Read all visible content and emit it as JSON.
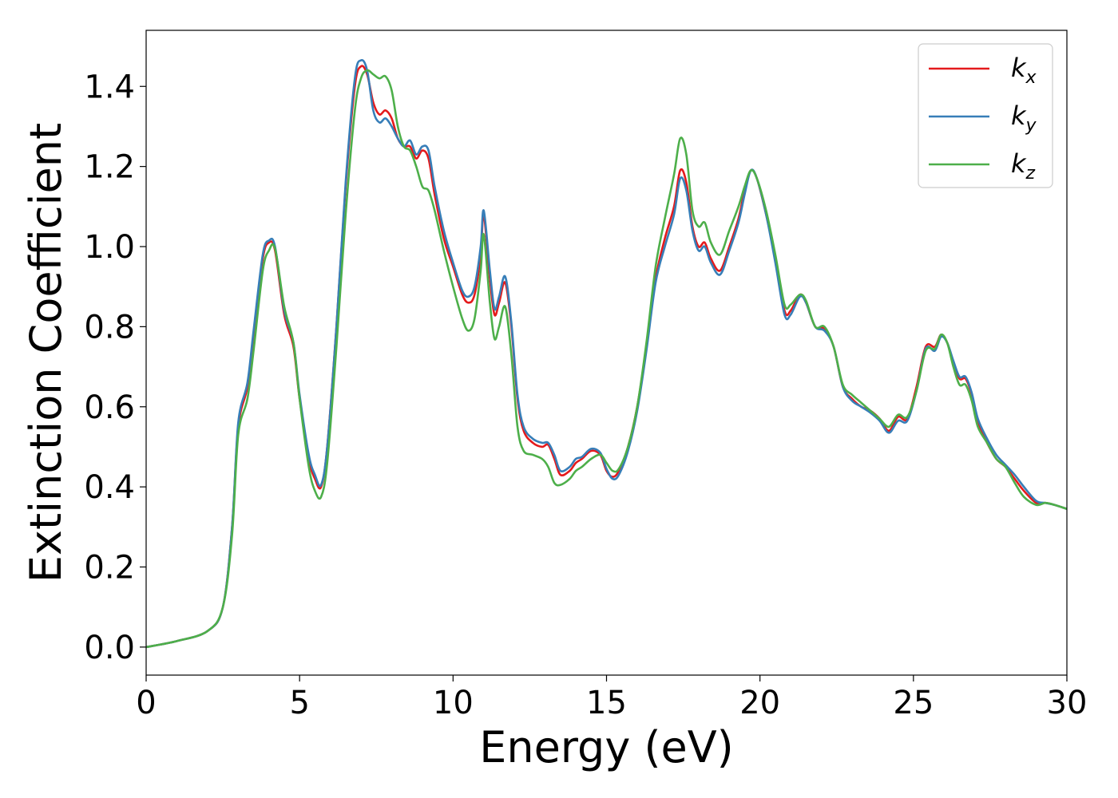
{
  "chart_data": {
    "type": "line",
    "title": "",
    "xlabel": "Energy (eV)",
    "ylabel": "Extinction Coefficient",
    "xlim": [
      0,
      30
    ],
    "ylim": [
      -0.07,
      1.54
    ],
    "xticks": [
      0,
      5,
      10,
      15,
      20,
      25,
      30
    ],
    "xtick_labels": [
      "0",
      "5",
      "10",
      "15",
      "20",
      "25",
      "30"
    ],
    "yticks": [
      0.0,
      0.2,
      0.4,
      0.6,
      0.8,
      1.0,
      1.2,
      1.4
    ],
    "ytick_labels": [
      "0.0",
      "0.2",
      "0.4",
      "0.6",
      "0.8",
      "1.0",
      "1.2",
      "1.4"
    ],
    "grid": false,
    "legend_position": "top-right",
    "series": [
      {
        "name": "k_x",
        "legend_base": "k",
        "legend_sub": "x",
        "color": "#e41a1c",
        "x": [
          0,
          1,
          2,
          2.5,
          2.8,
          3.0,
          3.3,
          3.5,
          3.8,
          4.0,
          4.2,
          4.5,
          4.8,
          5.0,
          5.3,
          5.5,
          5.7,
          5.9,
          6.2,
          6.5,
          6.8,
          7.0,
          7.2,
          7.4,
          7.6,
          7.8,
          8.0,
          8.2,
          8.4,
          8.6,
          8.8,
          9.0,
          9.2,
          9.4,
          9.7,
          10.0,
          10.3,
          10.5,
          10.7,
          10.9,
          11.0,
          11.2,
          11.35,
          11.5,
          11.7,
          11.9,
          12.1,
          12.3,
          12.6,
          12.9,
          13.1,
          13.3,
          13.5,
          13.8,
          14.0,
          14.2,
          14.5,
          14.8,
          15.0,
          15.2,
          15.4,
          15.7,
          16.0,
          16.3,
          16.6,
          16.9,
          17.2,
          17.4,
          17.6,
          17.8,
          18.0,
          18.2,
          18.4,
          18.7,
          19.0,
          19.3,
          19.5,
          19.7,
          19.9,
          20.2,
          20.5,
          20.8,
          21.0,
          21.3,
          21.5,
          21.8,
          22.1,
          22.4,
          22.7,
          23.0,
          23.3,
          23.6,
          23.9,
          24.2,
          24.5,
          24.8,
          25.1,
          25.4,
          25.7,
          25.9,
          26.1,
          26.3,
          26.5,
          26.7,
          26.9,
          27.1,
          27.4,
          27.7,
          28.0,
          28.3,
          28.6,
          29.0,
          29.3,
          29.6,
          30.0
        ],
        "y": [
          0.0,
          0.015,
          0.04,
          0.1,
          0.3,
          0.55,
          0.65,
          0.78,
          0.97,
          1.01,
          0.99,
          0.83,
          0.75,
          0.62,
          0.47,
          0.42,
          0.4,
          0.5,
          0.8,
          1.15,
          1.4,
          1.45,
          1.43,
          1.36,
          1.33,
          1.34,
          1.32,
          1.27,
          1.25,
          1.25,
          1.22,
          1.24,
          1.22,
          1.13,
          1.02,
          0.95,
          0.88,
          0.86,
          0.88,
          0.98,
          1.08,
          0.92,
          0.83,
          0.86,
          0.91,
          0.8,
          0.62,
          0.54,
          0.51,
          0.5,
          0.505,
          0.47,
          0.43,
          0.44,
          0.46,
          0.47,
          0.49,
          0.48,
          0.44,
          0.425,
          0.44,
          0.5,
          0.6,
          0.75,
          0.92,
          1.02,
          1.1,
          1.19,
          1.16,
          1.05,
          1.0,
          1.01,
          0.97,
          0.94,
          1.0,
          1.07,
          1.14,
          1.19,
          1.17,
          1.08,
          0.97,
          0.84,
          0.84,
          0.88,
          0.86,
          0.8,
          0.795,
          0.75,
          0.65,
          0.62,
          0.6,
          0.59,
          0.57,
          0.54,
          0.575,
          0.57,
          0.65,
          0.75,
          0.75,
          0.78,
          0.76,
          0.71,
          0.67,
          0.67,
          0.63,
          0.56,
          0.51,
          0.47,
          0.45,
          0.42,
          0.39,
          0.36,
          0.36,
          0.355,
          0.345
        ]
      },
      {
        "name": "k_y",
        "legend_base": "k",
        "legend_sub": "y",
        "color": "#377eb8",
        "x": [
          0,
          1,
          2,
          2.5,
          2.8,
          3.0,
          3.3,
          3.5,
          3.8,
          4.0,
          4.2,
          4.5,
          4.8,
          5.0,
          5.3,
          5.5,
          5.7,
          5.9,
          6.2,
          6.5,
          6.8,
          7.0,
          7.2,
          7.4,
          7.6,
          7.8,
          8.0,
          8.2,
          8.4,
          8.6,
          8.8,
          9.0,
          9.2,
          9.4,
          9.7,
          10.0,
          10.3,
          10.5,
          10.7,
          10.9,
          11.0,
          11.2,
          11.35,
          11.5,
          11.7,
          11.9,
          12.1,
          12.3,
          12.6,
          12.9,
          13.1,
          13.3,
          13.5,
          13.8,
          14.0,
          14.2,
          14.5,
          14.8,
          15.0,
          15.2,
          15.4,
          15.7,
          16.0,
          16.3,
          16.6,
          16.9,
          17.2,
          17.4,
          17.6,
          17.8,
          18.0,
          18.2,
          18.4,
          18.7,
          19.0,
          19.3,
          19.5,
          19.7,
          19.9,
          20.2,
          20.5,
          20.8,
          21.0,
          21.3,
          21.5,
          21.8,
          22.1,
          22.4,
          22.7,
          23.0,
          23.3,
          23.6,
          23.9,
          24.2,
          24.5,
          24.8,
          25.1,
          25.4,
          25.7,
          25.9,
          26.1,
          26.3,
          26.5,
          26.7,
          26.9,
          27.1,
          27.4,
          27.7,
          28.0,
          28.3,
          28.6,
          29.0,
          29.3,
          29.6,
          30.0
        ],
        "y": [
          0.0,
          0.015,
          0.04,
          0.1,
          0.3,
          0.56,
          0.66,
          0.79,
          0.98,
          1.015,
          1.0,
          0.84,
          0.76,
          0.63,
          0.48,
          0.43,
          0.405,
          0.5,
          0.8,
          1.16,
          1.42,
          1.465,
          1.44,
          1.34,
          1.31,
          1.32,
          1.3,
          1.27,
          1.25,
          1.265,
          1.23,
          1.25,
          1.24,
          1.15,
          1.04,
          0.96,
          0.89,
          0.875,
          0.9,
          1.0,
          1.09,
          0.94,
          0.845,
          0.875,
          0.925,
          0.81,
          0.63,
          0.55,
          0.52,
          0.51,
          0.51,
          0.48,
          0.44,
          0.45,
          0.47,
          0.475,
          0.495,
          0.485,
          0.445,
          0.42,
          0.43,
          0.49,
          0.59,
          0.74,
          0.91,
          1.0,
          1.08,
          1.17,
          1.14,
          1.04,
          0.99,
          1.0,
          0.96,
          0.93,
          0.99,
          1.06,
          1.13,
          1.19,
          1.17,
          1.08,
          0.96,
          0.83,
          0.83,
          0.875,
          0.86,
          0.8,
          0.79,
          0.75,
          0.65,
          0.615,
          0.6,
          0.585,
          0.565,
          0.535,
          0.565,
          0.565,
          0.64,
          0.745,
          0.74,
          0.775,
          0.76,
          0.715,
          0.675,
          0.675,
          0.635,
          0.57,
          0.52,
          0.48,
          0.455,
          0.43,
          0.4,
          0.365,
          0.36,
          0.355,
          0.345
        ]
      },
      {
        "name": "k_z",
        "legend_base": "k",
        "legend_sub": "z",
        "color": "#4daf4a",
        "x": [
          0,
          1,
          2,
          2.5,
          2.8,
          3.0,
          3.3,
          3.5,
          3.8,
          4.0,
          4.2,
          4.5,
          4.8,
          5.0,
          5.3,
          5.5,
          5.7,
          5.9,
          6.2,
          6.5,
          6.8,
          7.0,
          7.2,
          7.4,
          7.6,
          7.8,
          8.0,
          8.2,
          8.4,
          8.6,
          8.8,
          9.0,
          9.2,
          9.4,
          9.7,
          10.0,
          10.3,
          10.5,
          10.7,
          10.9,
          11.0,
          11.2,
          11.35,
          11.5,
          11.7,
          11.9,
          12.1,
          12.3,
          12.6,
          12.9,
          13.1,
          13.3,
          13.5,
          13.8,
          14.0,
          14.2,
          14.5,
          14.8,
          15.0,
          15.2,
          15.4,
          15.7,
          16.0,
          16.3,
          16.6,
          16.9,
          17.2,
          17.4,
          17.6,
          17.8,
          18.0,
          18.2,
          18.4,
          18.7,
          19.0,
          19.3,
          19.5,
          19.7,
          19.9,
          20.2,
          20.5,
          20.8,
          21.0,
          21.3,
          21.5,
          21.8,
          22.1,
          22.4,
          22.7,
          23.0,
          23.3,
          23.6,
          23.9,
          24.2,
          24.5,
          24.8,
          25.1,
          25.4,
          25.7,
          25.9,
          26.1,
          26.3,
          26.5,
          26.7,
          26.9,
          27.1,
          27.4,
          27.7,
          28.0,
          28.3,
          28.6,
          29.0,
          29.3,
          29.6,
          30.0
        ],
        "y": [
          0.0,
          0.015,
          0.04,
          0.1,
          0.28,
          0.53,
          0.62,
          0.74,
          0.94,
          0.99,
          0.995,
          0.85,
          0.76,
          0.62,
          0.45,
          0.39,
          0.375,
          0.46,
          0.75,
          1.08,
          1.34,
          1.42,
          1.44,
          1.43,
          1.42,
          1.425,
          1.39,
          1.3,
          1.25,
          1.24,
          1.2,
          1.15,
          1.14,
          1.09,
          0.99,
          0.9,
          0.82,
          0.79,
          0.82,
          0.94,
          1.03,
          0.86,
          0.77,
          0.8,
          0.85,
          0.73,
          0.55,
          0.49,
          0.48,
          0.47,
          0.45,
          0.41,
          0.405,
          0.42,
          0.44,
          0.45,
          0.47,
          0.48,
          0.46,
          0.44,
          0.445,
          0.5,
          0.6,
          0.76,
          0.95,
          1.07,
          1.18,
          1.27,
          1.23,
          1.09,
          1.05,
          1.06,
          1.01,
          0.98,
          1.04,
          1.1,
          1.15,
          1.19,
          1.17,
          1.09,
          0.98,
          0.855,
          0.855,
          0.88,
          0.865,
          0.8,
          0.8,
          0.75,
          0.655,
          0.63,
          0.61,
          0.59,
          0.57,
          0.55,
          0.58,
          0.575,
          0.64,
          0.74,
          0.745,
          0.78,
          0.76,
          0.7,
          0.655,
          0.655,
          0.615,
          0.55,
          0.51,
          0.47,
          0.45,
          0.41,
          0.375,
          0.355,
          0.36,
          0.355,
          0.345
        ]
      }
    ]
  }
}
